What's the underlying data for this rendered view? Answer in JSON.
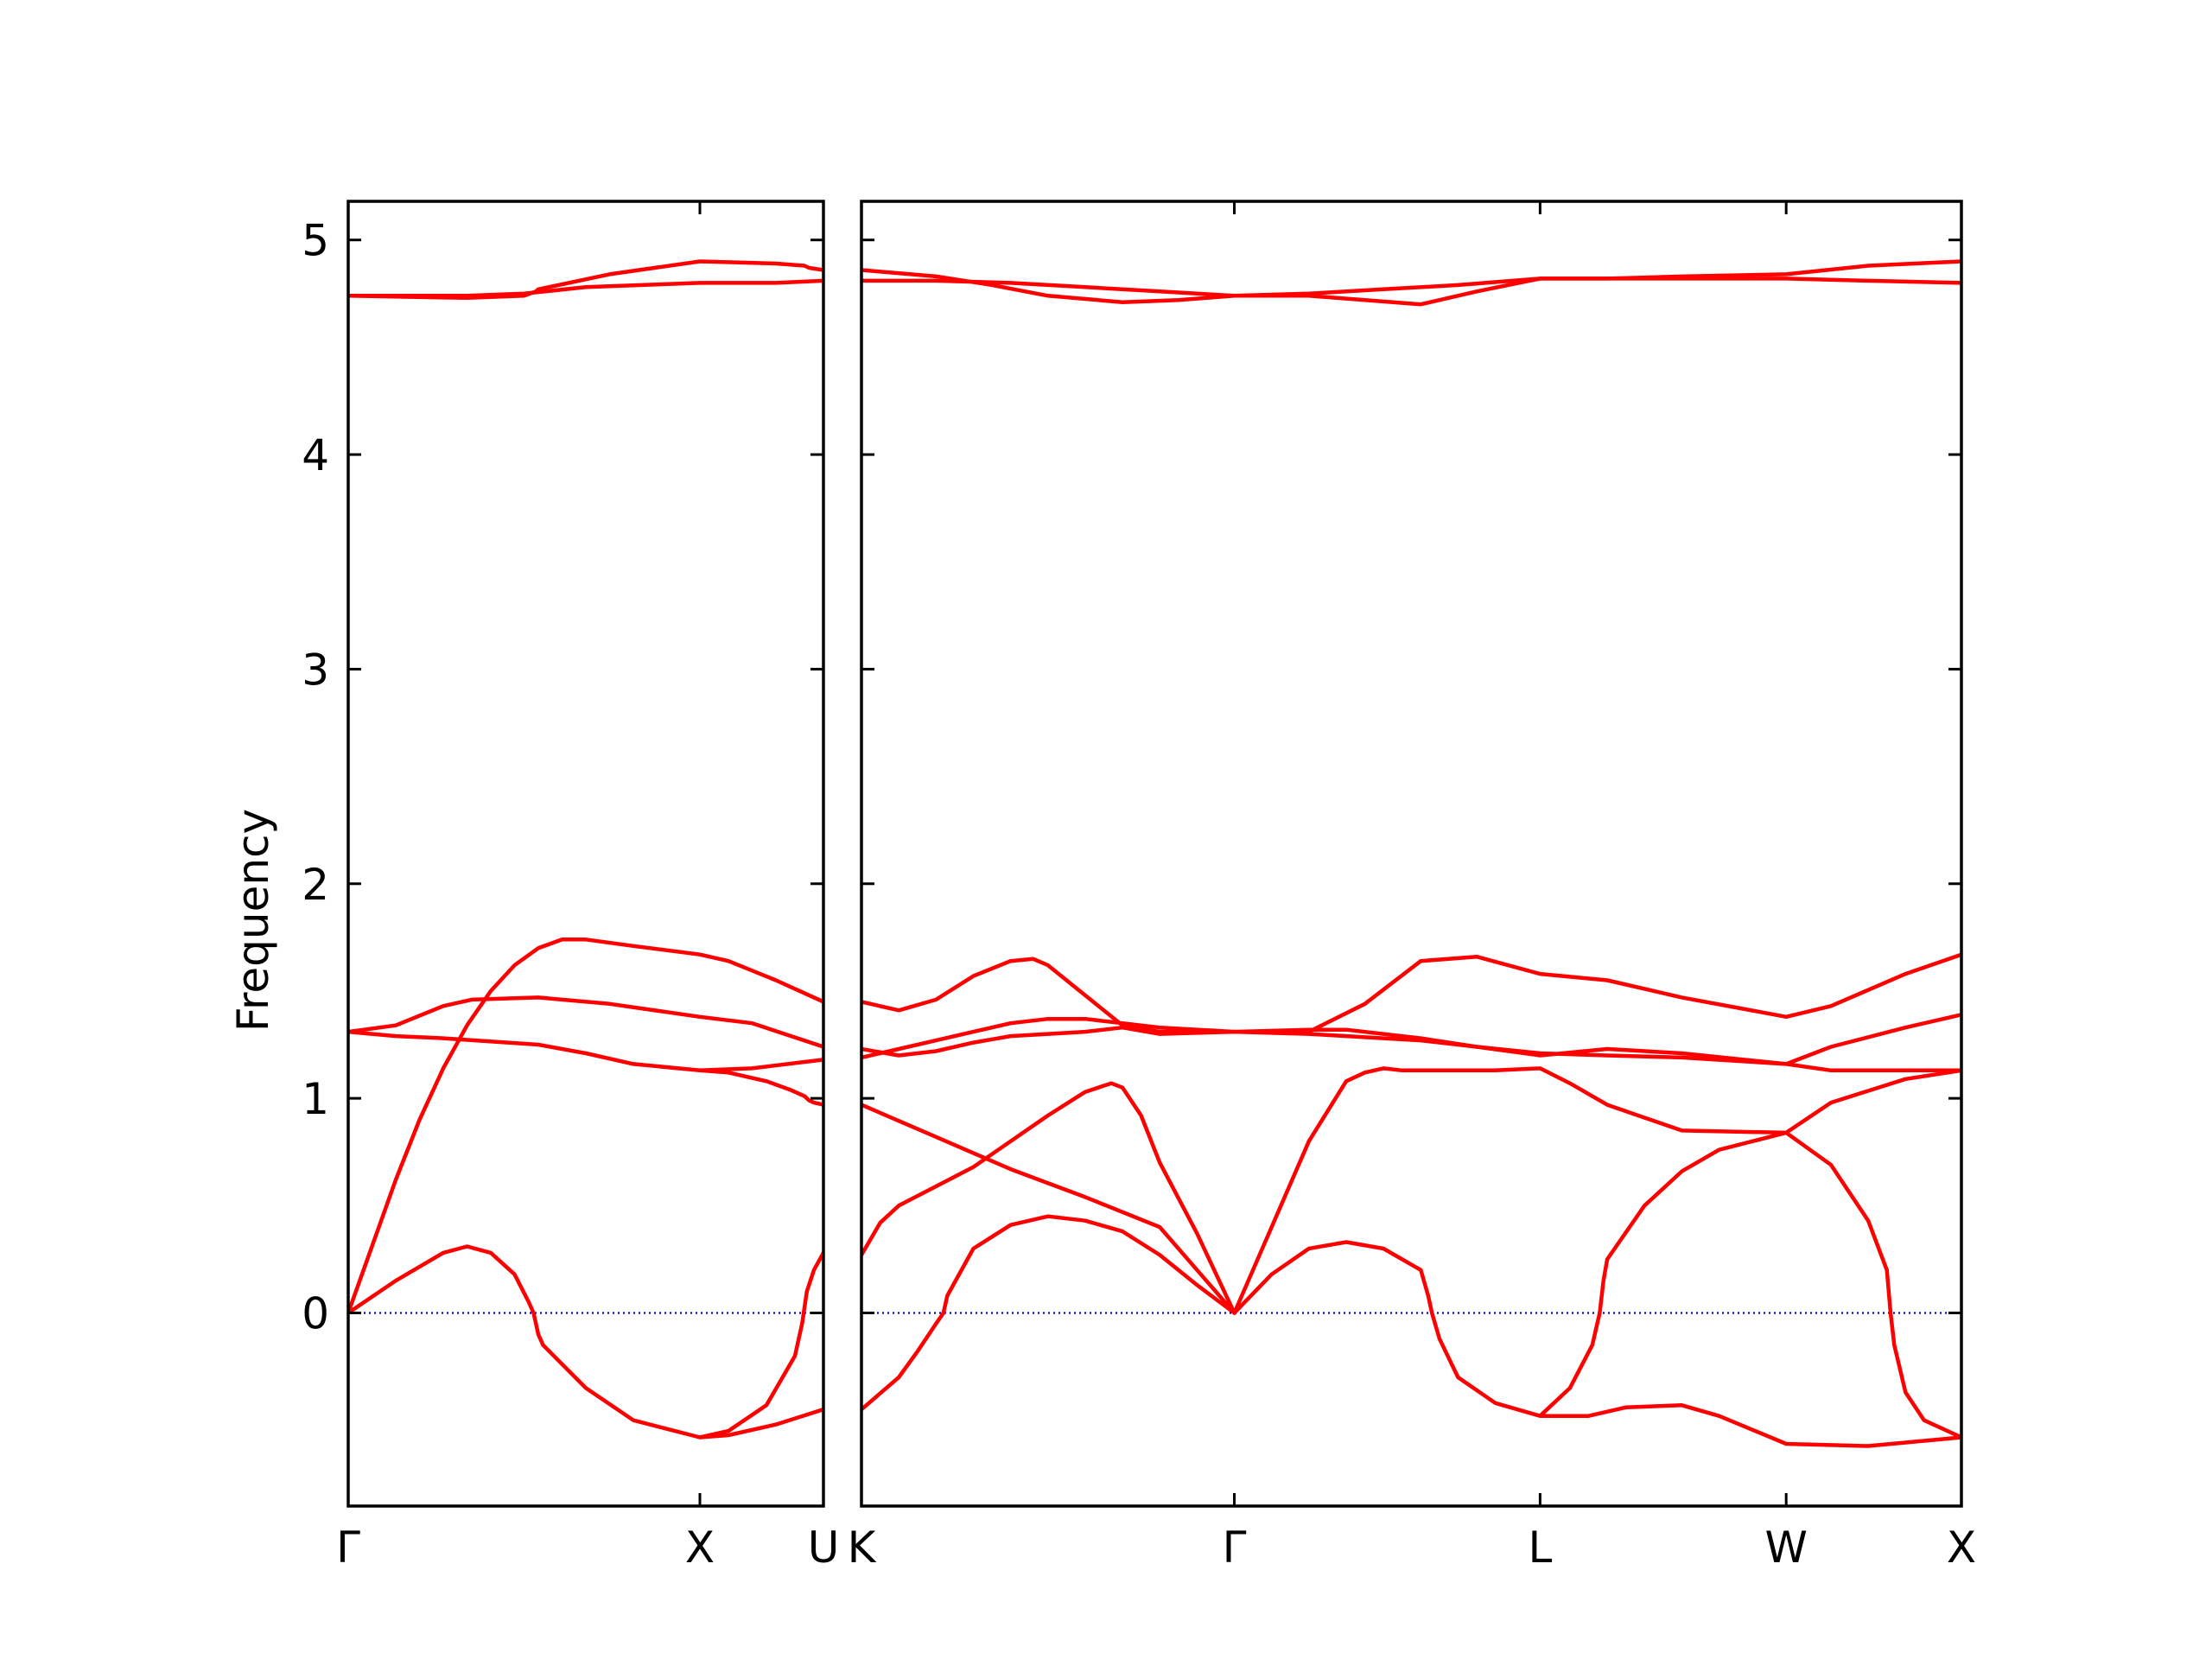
{
  "chart_data": {
    "type": "line",
    "ylabel": "Frequency",
    "ylim": [
      -0.9,
      5.18
    ],
    "yticks": [
      0,
      1,
      2,
      3,
      4,
      5
    ],
    "zero_line_color": "#0000cc",
    "band_color": "#ff0000",
    "grid": false,
    "panels": [
      {
        "name": "Γ-X-U",
        "xrange": [
          0,
          1.0
        ],
        "ticks": [
          {
            "x": 0,
            "label": "Γ"
          },
          {
            "x": 0.74,
            "label": "X"
          },
          {
            "x": 1.0,
            "label": "U"
          }
        ],
        "series": [
          {
            "x": [
              0,
              0.25,
              0.37,
              0.395,
              0.4,
              0.55,
              0.74,
              0.9,
              0.96,
              0.97,
              1.0
            ],
            "y": [
              4.74,
              4.73,
              4.74,
              4.76,
              4.77,
              4.84,
              4.9,
              4.89,
              4.88,
              4.87,
              4.86
            ]
          },
          {
            "x": [
              0,
              0.25,
              0.37,
              0.5,
              0.74,
              0.9,
              1.0
            ],
            "y": [
              4.74,
              4.74,
              4.75,
              4.78,
              4.8,
              4.8,
              4.81
            ]
          },
          {
            "x": [
              0,
              0.05,
              0.1,
              0.15,
              0.2,
              0.25,
              0.3,
              0.35,
              0.4,
              0.45,
              0.5,
              0.6,
              0.74,
              0.8,
              0.9,
              1.0
            ],
            "y": [
              0.0,
              0.31,
              0.62,
              0.9,
              1.14,
              1.34,
              1.5,
              1.62,
              1.7,
              1.74,
              1.74,
              1.71,
              1.67,
              1.64,
              1.55,
              1.45
            ]
          },
          {
            "x": [
              0,
              0.1,
              0.2,
              0.26,
              0.4,
              0.55,
              0.74,
              0.85,
              1.0
            ],
            "y": [
              1.31,
              1.34,
              1.43,
              1.46,
              1.47,
              1.44,
              1.38,
              1.35,
              1.24
            ]
          },
          {
            "x": [
              0,
              0.1,
              0.2,
              0.4,
              0.5,
              0.6,
              0.74,
              0.85,
              1.0
            ],
            "y": [
              1.31,
              1.29,
              1.28,
              1.25,
              1.21,
              1.16,
              1.13,
              1.14,
              1.18
            ]
          },
          {
            "x": [
              0,
              0.1,
              0.2,
              0.25,
              0.3,
              0.35,
              0.38,
              0.39,
              0.4,
              0.41
            ],
            "y": [
              0.0,
              0.15,
              0.28,
              0.31,
              0.28,
              0.18,
              0.05,
              0.0,
              -0.1,
              -0.15
            ]
          },
          {
            "x": [
              0.41,
              0.5,
              0.6,
              0.74,
              0.8,
              0.9,
              1.0
            ],
            "y": [
              -0.15,
              -0.35,
              -0.5,
              -0.58,
              -0.57,
              -0.52,
              -0.45
            ]
          },
          {
            "x": [
              0.74,
              0.8,
              0.88,
              0.93,
              0.96,
              0.97,
              0.98,
              1.0
            ],
            "y": [
              1.13,
              1.12,
              1.08,
              1.04,
              1.01,
              0.99,
              0.98,
              0.97
            ]
          },
          {
            "x": [
              0.74,
              0.8,
              0.88,
              0.94,
              0.955,
              0.965,
              0.98,
              1.0
            ],
            "y": [
              -0.58,
              -0.55,
              -0.43,
              -0.2,
              -0.05,
              0.1,
              0.2,
              0.28
            ]
          }
        ]
      },
      {
        "name": "K-Γ-L-W-X",
        "xrange": [
          0,
          2.95
        ],
        "ticks": [
          {
            "x": 0,
            "label": "K"
          },
          {
            "x": 1.0,
            "label": "Γ"
          },
          {
            "x": 1.82,
            "label": "L"
          },
          {
            "x": 2.48,
            "label": "W"
          },
          {
            "x": 2.95,
            "label": "X"
          }
        ],
        "series": [
          {
            "x": [
              0,
              0.2,
              0.35,
              0.5,
              0.7,
              0.85,
              1.0,
              1.2,
              1.35,
              1.5,
              1.65,
              1.82,
              2.0,
              2.2,
              2.48,
              2.7,
              2.95
            ],
            "y": [
              4.86,
              4.83,
              4.79,
              4.74,
              4.71,
              4.72,
              4.74,
              4.74,
              4.72,
              4.7,
              4.76,
              4.82,
              4.82,
              4.83,
              4.84,
              4.88,
              4.9
            ]
          },
          {
            "x": [
              0,
              0.2,
              0.4,
              0.6,
              0.8,
              1.0,
              1.2,
              1.4,
              1.6,
              1.82,
              2.0,
              2.2,
              2.48,
              2.7,
              2.95
            ],
            "y": [
              4.81,
              4.81,
              4.8,
              4.78,
              4.76,
              4.74,
              4.75,
              4.77,
              4.79,
              4.82,
              4.82,
              4.82,
              4.82,
              4.81,
              4.8
            ]
          },
          {
            "x": [
              0,
              0.1,
              0.2,
              0.3,
              0.4,
              0.46,
              0.5,
              0.6,
              0.7,
              0.8,
              1.0,
              1.2,
              1.35,
              1.5,
              1.65,
              1.82,
              2.0,
              2.2,
              2.48,
              2.6,
              2.8,
              2.95
            ],
            "y": [
              1.45,
              1.41,
              1.46,
              1.57,
              1.64,
              1.65,
              1.62,
              1.48,
              1.34,
              1.31,
              1.31,
              1.31,
              1.44,
              1.64,
              1.66,
              1.58,
              1.55,
              1.47,
              1.38,
              1.43,
              1.58,
              1.67
            ]
          },
          {
            "x": [
              0,
              0.1,
              0.2,
              0.3,
              0.4,
              0.5,
              0.6,
              0.7,
              0.8,
              1.0,
              1.2,
              1.3,
              1.5,
              1.65,
              1.82,
              2.0,
              2.2,
              2.48,
              2.6,
              2.8,
              2.95
            ],
            "y": [
              1.23,
              1.2,
              1.22,
              1.26,
              1.29,
              1.3,
              1.31,
              1.33,
              1.3,
              1.31,
              1.32,
              1.32,
              1.28,
              1.24,
              1.2,
              1.23,
              1.21,
              1.16,
              1.24,
              1.33,
              1.39
            ]
          },
          {
            "x": [
              0,
              0.1,
              0.2,
              0.3,
              0.4,
              0.5,
              0.6,
              0.7,
              0.8,
              1.0,
              1.2,
              1.3,
              1.5,
              1.65,
              1.82,
              2.0,
              2.2,
              2.48,
              2.6,
              2.8,
              2.95
            ],
            "y": [
              1.19,
              1.23,
              1.27,
              1.31,
              1.35,
              1.37,
              1.37,
              1.35,
              1.33,
              1.31,
              1.3,
              1.29,
              1.27,
              1.24,
              1.21,
              1.2,
              1.19,
              1.16,
              1.13,
              1.13,
              1.13
            ]
          },
          {
            "x": [
              0,
              0.2,
              0.4,
              0.6,
              0.8,
              1.0
            ],
            "y": [
              0.97,
              0.82,
              0.67,
              0.54,
              0.4,
              0.0
            ]
          },
          {
            "x": [
              0,
              0.05,
              0.1,
              0.2,
              0.3,
              0.4,
              0.5,
              0.6,
              0.67,
              0.7,
              0.75,
              0.8,
              0.9,
              1.0
            ],
            "y": [
              0.27,
              0.42,
              0.5,
              0.59,
              0.68,
              0.8,
              0.92,
              1.03,
              1.07,
              1.05,
              0.92,
              0.7,
              0.37,
              0.0
            ]
          },
          {
            "x": [
              0,
              0.1,
              0.15,
              0.2,
              0.22,
              0.23,
              0.3,
              0.4,
              0.5,
              0.6,
              0.7,
              0.8,
              0.9,
              1.0
            ],
            "y": [
              -0.45,
              -0.3,
              -0.18,
              -0.05,
              0.0,
              0.08,
              0.3,
              0.41,
              0.45,
              0.43,
              0.38,
              0.27,
              0.13,
              0.0
            ]
          },
          {
            "x": [
              1.0,
              1.1,
              1.2,
              1.3,
              1.35,
              1.4,
              1.45,
              1.5,
              1.6,
              1.7,
              1.82,
              1.9,
              2.0,
              2.2,
              2.48,
              2.6,
              2.8,
              2.95
            ],
            "y": [
              0.0,
              0.4,
              0.8,
              1.08,
              1.12,
              1.14,
              1.13,
              1.13,
              1.13,
              1.13,
              1.14,
              1.07,
              0.97,
              0.85,
              0.84,
              0.98,
              1.09,
              1.13
            ]
          },
          {
            "x": [
              1.0,
              1.1,
              1.2,
              1.3,
              1.4,
              1.5,
              1.52,
              1.53,
              1.55,
              1.6,
              1.7,
              1.82,
              1.95,
              2.05,
              2.2,
              2.3,
              2.48,
              2.7,
              2.95
            ],
            "y": [
              0.0,
              0.18,
              0.3,
              0.33,
              0.3,
              0.2,
              0.08,
              0.0,
              -0.12,
              -0.3,
              -0.42,
              -0.48,
              -0.48,
              -0.44,
              -0.43,
              -0.48,
              -0.61,
              -0.62,
              -0.58
            ]
          },
          {
            "x": [
              1.82,
              1.9,
              1.96,
              1.98,
              1.99,
              2.0,
              2.1,
              2.2,
              2.3,
              2.48
            ],
            "y": [
              -0.48,
              -0.35,
              -0.15,
              0.0,
              0.15,
              0.25,
              0.5,
              0.66,
              0.76,
              0.84
            ]
          },
          {
            "x": [
              2.48,
              2.6,
              2.7,
              2.75,
              2.76,
              2.77,
              2.8,
              2.85,
              2.95
            ],
            "y": [
              0.84,
              0.69,
              0.43,
              0.2,
              0.0,
              -0.15,
              -0.37,
              -0.5,
              -0.58
            ]
          }
        ]
      }
    ]
  }
}
